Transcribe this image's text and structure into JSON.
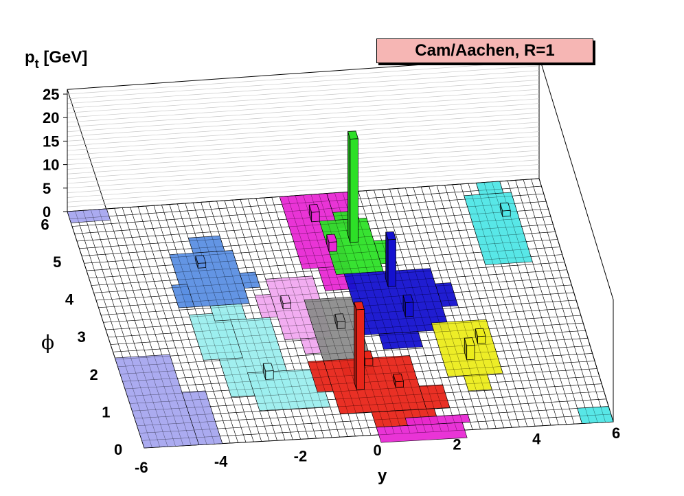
{
  "chart_data": {
    "type": "lego3d",
    "title": "Cam/Aachen, R=1",
    "xlabel": "y",
    "ylabel": "ϕ",
    "zlabel_main": "p",
    "zlabel_sub": "t",
    "zlabel_unit": "[GeV]",
    "x_ticks": [
      "-6",
      "-4",
      "-2",
      "0",
      "2",
      "4",
      "6"
    ],
    "y_ticks": [
      "0",
      "1",
      "2",
      "3",
      "4",
      "5",
      "6"
    ],
    "z_ticks": [
      "0",
      "5",
      "10",
      "15",
      "20",
      "25"
    ],
    "xlim": [
      -6,
      6
    ],
    "ylim": [
      0,
      6.3
    ],
    "zlim": [
      0,
      25
    ],
    "grid": true,
    "regions": [
      {
        "name": "periwinkle-jet",
        "color": "#a6a6ef",
        "cells": [
          [
            -6,
            0,
            -4.6,
            2.4
          ],
          [
            -4.6,
            0,
            -4,
            1.4
          ],
          [
            -6,
            6,
            -5,
            6.3
          ]
        ]
      },
      {
        "name": "cyan-jet",
        "color": "#9ceeee",
        "cells": [
          [
            -3.4,
            1.2,
            -1.8,
            3.2
          ],
          [
            -2.8,
            0.8,
            -1,
            1.8
          ],
          [
            -3.8,
            2.2,
            -2.8,
            3.4
          ],
          [
            -3.2,
            3.2,
            -2.4,
            3.6
          ]
        ]
      },
      {
        "name": "steel-blue-jet",
        "color": "#5b8fe3",
        "cells": [
          [
            -3.8,
            3.6,
            -2.2,
            5
          ],
          [
            -3.2,
            5,
            -2.4,
            5.4
          ],
          [
            -4,
            3.6,
            -3.6,
            4.2
          ],
          [
            -2.2,
            4,
            -1.8,
            4.4
          ]
        ]
      },
      {
        "name": "pink-jet",
        "color": "#f1a9f0",
        "cells": [
          [
            -1.6,
            2.6,
            -0.4,
            4.2
          ],
          [
            -2,
            3.2,
            -1.6,
            3.8
          ],
          [
            -1.2,
            2.2,
            -0.6,
            2.6
          ]
        ]
      },
      {
        "name": "magenta-jet",
        "color": "#e829d4",
        "cells": [
          [
            -0.6,
            4.4,
            0.6,
            6.3
          ],
          [
            -0.2,
            3.8,
            0.6,
            4.4
          ],
          [
            0.6,
            5.4,
            1.2,
            6.3
          ]
        ]
      },
      {
        "name": "green-jet",
        "color": "#2de027",
        "cells": [
          [
            0.2,
            4.2,
            1.4,
            5.6
          ],
          [
            0.6,
            5.6,
            1.2,
            5.8
          ],
          [
            1.4,
            4.4,
            1.8,
            5
          ]
        ]
      },
      {
        "name": "blue-jet",
        "color": "#1411cf",
        "cells": [
          [
            0.4,
            2.6,
            2.6,
            4.2
          ],
          [
            0.8,
            2.2,
            1.8,
            2.6
          ],
          [
            2.6,
            3.2,
            3,
            3.8
          ]
        ]
      },
      {
        "name": "gray-jet",
        "color": "#8c8c8c",
        "cells": [
          [
            -0.8,
            2,
            0.4,
            3.6
          ],
          [
            -0.4,
            1.6,
            0.4,
            2
          ]
        ]
      },
      {
        "name": "red-jet",
        "color": "#e82519",
        "cells": [
          [
            -0.8,
            0.6,
            1.4,
            2
          ],
          [
            -1.2,
            1.2,
            -0.8,
            2
          ],
          [
            0,
            0.2,
            1.6,
            0.6
          ],
          [
            1.4,
            0.6,
            2,
            1.2
          ]
        ]
      },
      {
        "name": "magenta-lower-jet",
        "color": "#e829d4",
        "cells": [
          [
            0,
            -0.2,
            2.2,
            0.2
          ],
          [
            0.8,
            0.2,
            2.4,
            0.4
          ]
        ]
      },
      {
        "name": "yellow-jet",
        "color": "#ecec1b",
        "cells": [
          [
            2.2,
            1.4,
            3.6,
            2.8
          ],
          [
            2.6,
            1,
            3.2,
            1.4
          ]
        ]
      },
      {
        "name": "cyan-far-jet",
        "color": "#4fe6e6",
        "cells": [
          [
            4,
            4.2,
            5.2,
            6
          ],
          [
            4.4,
            6,
            5,
            6.3
          ]
        ]
      },
      {
        "name": "cyan-corner-jet",
        "color": "#4fe6e6",
        "cells": [
          [
            5.2,
            0,
            6,
            0.4
          ]
        ]
      }
    ],
    "towers": [
      {
        "name": "green-tower",
        "color": "#2de027",
        "y": 0.8,
        "phi": 5.0,
        "pt": 22
      },
      {
        "name": "blue-tower",
        "color": "#1411cf",
        "y": 1.4,
        "phi": 3.8,
        "pt": 10
      },
      {
        "name": "red-tower",
        "color": "#e82519",
        "y": -0.2,
        "phi": 1.2,
        "pt": 17
      },
      {
        "name": "blue-small-tower",
        "color": "#1411cf",
        "y": 1.6,
        "phi": 3.0,
        "pt": 3
      },
      {
        "name": "yellow-tower",
        "color": "#ecec1b",
        "y": 2.8,
        "phi": 1.8,
        "pt": 3
      },
      {
        "name": "magenta-tower",
        "color": "#e829d4",
        "y": 0.0,
        "phi": 5.6,
        "pt": 2
      },
      {
        "name": "magenta-tower-2",
        "color": "#e829d4",
        "y": 0.2,
        "phi": 4.8,
        "pt": 2
      },
      {
        "name": "gray-tower",
        "color": "#8c8c8c",
        "y": -0.2,
        "phi": 2.8,
        "pt": 1.5
      },
      {
        "name": "cyan-tower",
        "color": "#9ceeee",
        "y": -2.4,
        "phi": 1.6,
        "pt": 1.8
      },
      {
        "name": "pink-tower",
        "color": "#f1a9f0",
        "y": -1.4,
        "phi": 3.4,
        "pt": 1.2
      },
      {
        "name": "steel-tower",
        "color": "#5b8fe3",
        "y": -3.2,
        "phi": 4.6,
        "pt": 1
      },
      {
        "name": "red-small-tower",
        "color": "#e82519",
        "y": 0.2,
        "phi": 1.8,
        "pt": 1.5
      },
      {
        "name": "red-small-tower-2",
        "color": "#e82519",
        "y": 0.8,
        "phi": 1.2,
        "pt": 1.2
      },
      {
        "name": "cyan-far-tower",
        "color": "#4fe6e6",
        "y": 4.8,
        "phi": 5.4,
        "pt": 1.2
      },
      {
        "name": "yellow-small-tower",
        "color": "#ecec1b",
        "y": 3.2,
        "phi": 2.2,
        "pt": 1.5
      }
    ]
  }
}
